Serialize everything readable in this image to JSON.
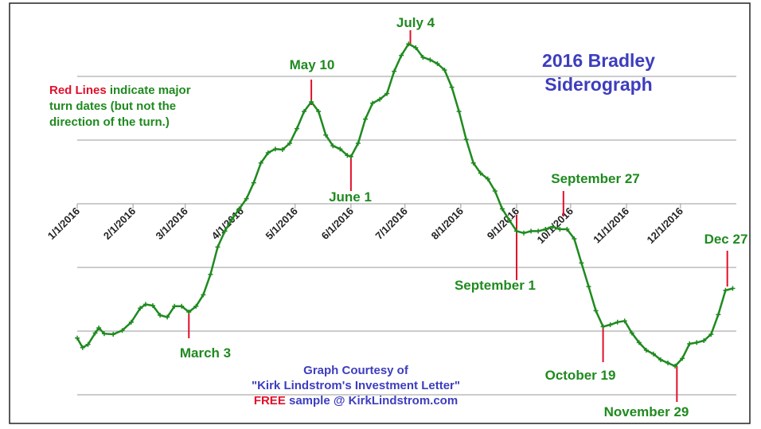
{
  "chart_data": {
    "type": "line",
    "title": [
      "2016 Bradley",
      "Siderograph"
    ],
    "note": {
      "highlight": "Red Lines",
      "lines": [
        " indicate major",
        "turn dates (but not the",
        "direction of the turn.)"
      ]
    },
    "credit": {
      "lines": [
        "Graph Courtesy of",
        "\"Kirk Lindstrom's Investment Letter\""
      ],
      "highlight": "FREE",
      "tail": " sample @ KirkLindstrom.com"
    },
    "color": "#1f8a1f",
    "annotation_color": "#e0102a",
    "xlim": [
      0,
      366
    ],
    "ylim": [
      -3,
      3
    ],
    "xticks": [
      {
        "value": 0,
        "label": "1/1/2016"
      },
      {
        "value": 31,
        "label": "2/1/2016"
      },
      {
        "value": 60,
        "label": "3/1/2016"
      },
      {
        "value": 91,
        "label": "4/1/2016"
      },
      {
        "value": 121,
        "label": "5/1/2016"
      },
      {
        "value": 152,
        "label": "6/1/2016"
      },
      {
        "value": 182,
        "label": "7/1/2016"
      },
      {
        "value": 213,
        "label": "8/1/2016"
      },
      {
        "value": 244,
        "label": "9/1/2016"
      },
      {
        "value": 274,
        "label": "10/1/2016"
      },
      {
        "value": 305,
        "label": "11/1/2016"
      },
      {
        "value": 335,
        "label": "12/1/2016"
      }
    ],
    "gridlines": [
      2,
      1,
      -1,
      -2,
      -3
    ],
    "x": [
      0,
      3,
      6,
      10,
      12,
      15,
      20,
      25,
      30,
      35,
      38,
      42,
      46,
      50,
      54,
      58,
      62,
      66,
      70,
      74,
      78,
      82,
      86,
      90,
      94,
      98,
      102,
      106,
      110,
      114,
      118,
      122,
      126,
      130,
      134,
      138,
      142,
      146,
      150,
      152,
      156,
      160,
      164,
      168,
      172,
      176,
      180,
      184,
      188,
      192,
      196,
      200,
      204,
      208,
      212,
      216,
      220,
      224,
      228,
      232,
      236,
      240,
      244,
      248,
      252,
      256,
      260,
      264,
      268,
      272,
      276,
      280,
      284,
      288,
      292,
      296,
      300,
      304,
      308,
      312,
      316,
      320,
      324,
      328,
      332,
      336,
      340,
      344,
      348,
      352,
      356,
      360,
      364
    ],
    "values": [
      -2.11,
      -2.26,
      -2.21,
      -2.03,
      -1.95,
      -2.04,
      -2.05,
      -1.99,
      -1.86,
      -1.64,
      -1.58,
      -1.6,
      -1.75,
      -1.78,
      -1.61,
      -1.61,
      -1.7,
      -1.61,
      -1.43,
      -1.11,
      -0.68,
      -0.43,
      -0.24,
      -0.08,
      0.08,
      0.33,
      0.64,
      0.8,
      0.86,
      0.85,
      0.95,
      1.18,
      1.45,
      1.6,
      1.45,
      1.08,
      0.91,
      0.86,
      0.76,
      0.74,
      0.95,
      1.33,
      1.58,
      1.64,
      1.73,
      2.08,
      2.33,
      2.51,
      2.45,
      2.3,
      2.26,
      2.2,
      2.1,
      1.83,
      1.45,
      1.01,
      0.64,
      0.48,
      0.39,
      0.2,
      -0.08,
      -0.26,
      -0.43,
      -0.46,
      -0.43,
      -0.43,
      -0.4,
      -0.36,
      -0.4,
      -0.4,
      -0.55,
      -0.93,
      -1.3,
      -1.68,
      -1.93,
      -1.9,
      -1.86,
      -1.84,
      -2.03,
      -2.18,
      -2.3,
      -2.36,
      -2.45,
      -2.5,
      -2.55,
      -2.43,
      -2.2,
      -2.18,
      -2.15,
      -2.05,
      -1.74,
      -1.36,
      -1.33
    ],
    "annotations": [
      {
        "label": "March 3",
        "x": 62
      },
      {
        "label": "May 10",
        "x": 130
      },
      {
        "label": "June 1",
        "x": 152
      },
      {
        "label": "July 4",
        "x": 185
      },
      {
        "label": "September 1",
        "x": 244
      },
      {
        "label": "September 27",
        "x": 270
      },
      {
        "label": "October 19",
        "x": 292
      },
      {
        "label": "November 29",
        "x": 333
      },
      {
        "label": "Dec 27",
        "x": 361
      }
    ]
  }
}
